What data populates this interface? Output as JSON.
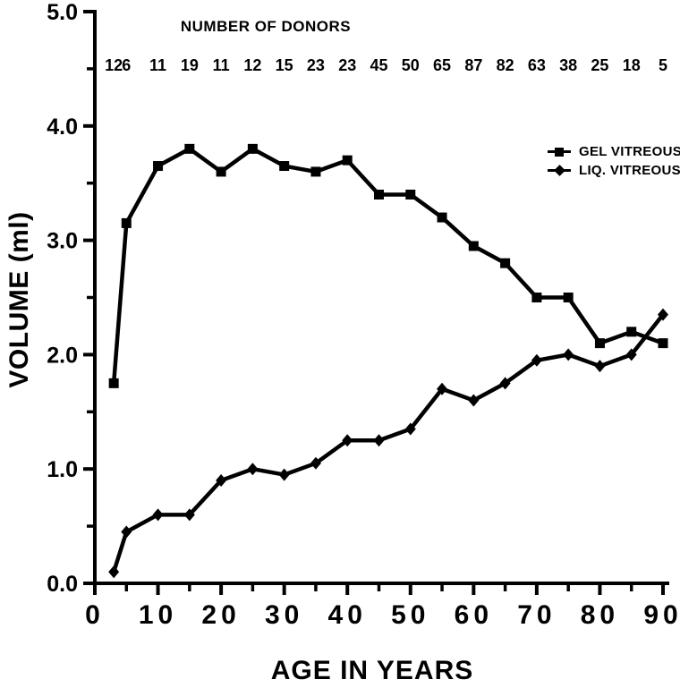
{
  "figure": {
    "top_title": "NUMBER OF DONORS",
    "background": "#ffffff",
    "ink_color": "#000000"
  },
  "legend": {
    "position": "upper right",
    "items": [
      {
        "label": "GEL VITREOUS",
        "marker": "square"
      },
      {
        "label": "LIQ. VITREOUS",
        "marker": "diamond"
      }
    ]
  },
  "chart_data": {
    "type": "line",
    "title": "NUMBER OF DONORS",
    "xlabel": "AGE IN YEARS",
    "ylabel": "VOLUME (ml)",
    "xlim": [
      0,
      90
    ],
    "ylim": [
      0.0,
      5.0
    ],
    "grid": false,
    "legend_position": "upper right",
    "x": [
      3,
      5,
      10,
      15,
      20,
      25,
      30,
      35,
      40,
      45,
      50,
      55,
      60,
      65,
      70,
      75,
      80,
      85,
      90
    ],
    "number_of_donors": [
      "12",
      "6",
      "11",
      "19",
      "11",
      "12",
      "15",
      "23",
      "23",
      "45",
      "50",
      "65",
      "87",
      "82",
      "63",
      "38",
      "25",
      "18",
      "5"
    ],
    "series": [
      {
        "name": "GEL VITREOUS",
        "marker": "square",
        "values": [
          1.75,
          3.15,
          3.65,
          3.8,
          3.6,
          3.8,
          3.65,
          3.6,
          3.7,
          3.4,
          3.4,
          3.2,
          2.95,
          2.8,
          2.5,
          2.5,
          2.1,
          2.2,
          2.1
        ]
      },
      {
        "name": "LIQ. VITREOUS",
        "marker": "diamond",
        "values": [
          0.1,
          0.45,
          0.6,
          0.6,
          0.9,
          1.0,
          0.95,
          1.05,
          1.25,
          1.25,
          1.35,
          1.7,
          1.6,
          1.75,
          1.95,
          2.0,
          1.9,
          2.0,
          2.35
        ]
      }
    ],
    "x_major_ticks": [
      0,
      10,
      20,
      30,
      40,
      50,
      60,
      70,
      80,
      90
    ],
    "x_tick_labels": [
      "0",
      "10",
      "20",
      "30",
      "40",
      "50",
      "60",
      "70",
      "80",
      "90"
    ],
    "x_minor_step": 5,
    "y_major_ticks": [
      0,
      1,
      2,
      3,
      4,
      5
    ],
    "y_tick_labels": [
      "0.0",
      "1.0",
      "2.0",
      "3.0",
      "4.0",
      "5.0"
    ],
    "y_minor_step": 0.5,
    "line_color": "#000000"
  }
}
